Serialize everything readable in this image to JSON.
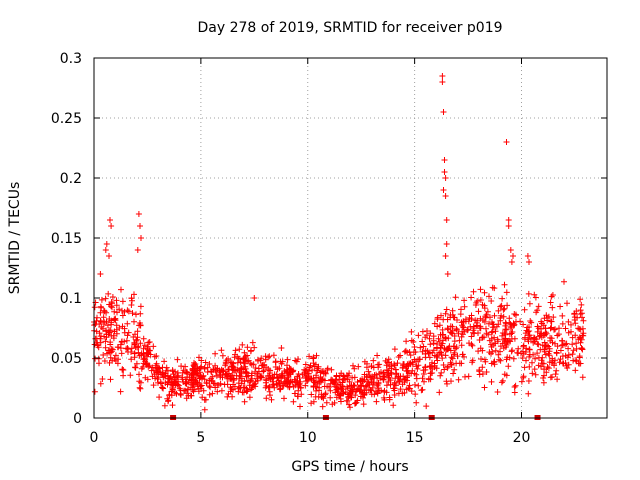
{
  "chart_data": {
    "type": "scatter",
    "title": "Day 278 of 2019, SRMTID for receiver p019",
    "xlabel": "GPS time / hours",
    "ylabel": "SRMTID / TECUs",
    "xlim": [
      0,
      24
    ],
    "ylim": [
      0,
      0.3
    ],
    "xticks": [
      "0",
      "5",
      "10",
      "15",
      "20"
    ],
    "yticks": [
      "0",
      "0.05",
      "0.1",
      "0.15",
      "0.2",
      "0.25",
      "0.3"
    ],
    "grid": true,
    "legend": "none",
    "series": [
      {
        "name": "SRMTID",
        "marker": "plus",
        "color": "#ff0000",
        "profile_hours": [
          0.0,
          0.5,
          1.0,
          1.5,
          2.0,
          2.5,
          3.0,
          3.5,
          4.0,
          5.0,
          6.0,
          7.0,
          8.0,
          9.0,
          10.0,
          11.0,
          12.0,
          13.0,
          14.0,
          15.0,
          15.5,
          16.0,
          16.5,
          17.0,
          18.0,
          19.0,
          20.0,
          21.0,
          22.0,
          23.0
        ],
        "profile_mean": [
          0.065,
          0.075,
          0.072,
          0.068,
          0.06,
          0.045,
          0.035,
          0.03,
          0.03,
          0.032,
          0.035,
          0.038,
          0.037,
          0.033,
          0.035,
          0.028,
          0.025,
          0.03,
          0.035,
          0.045,
          0.05,
          0.055,
          0.06,
          0.065,
          0.07,
          0.07,
          0.065,
          0.06,
          0.065,
          0.07
        ],
        "spikes": [
          {
            "x": 0.3,
            "y": 0.12
          },
          {
            "x": 0.55,
            "y": 0.14
          },
          {
            "x": 0.6,
            "y": 0.145
          },
          {
            "x": 0.75,
            "y": 0.165
          },
          {
            "x": 0.8,
            "y": 0.16
          },
          {
            "x": 0.7,
            "y": 0.135
          },
          {
            "x": 2.1,
            "y": 0.17
          },
          {
            "x": 2.15,
            "y": 0.16
          },
          {
            "x": 2.2,
            "y": 0.15
          },
          {
            "x": 2.05,
            "y": 0.14
          },
          {
            "x": 7.5,
            "y": 0.1
          },
          {
            "x": 16.3,
            "y": 0.285
          },
          {
            "x": 16.3,
            "y": 0.28
          },
          {
            "x": 16.35,
            "y": 0.255
          },
          {
            "x": 16.4,
            "y": 0.215
          },
          {
            "x": 16.4,
            "y": 0.205
          },
          {
            "x": 16.45,
            "y": 0.2
          },
          {
            "x": 16.35,
            "y": 0.19
          },
          {
            "x": 16.45,
            "y": 0.185
          },
          {
            "x": 16.5,
            "y": 0.165
          },
          {
            "x": 16.5,
            "y": 0.145
          },
          {
            "x": 16.45,
            "y": 0.135
          },
          {
            "x": 16.55,
            "y": 0.12
          },
          {
            "x": 19.3,
            "y": 0.23
          },
          {
            "x": 19.4,
            "y": 0.165
          },
          {
            "x": 19.4,
            "y": 0.16
          },
          {
            "x": 19.5,
            "y": 0.14
          },
          {
            "x": 19.6,
            "y": 0.135
          },
          {
            "x": 19.55,
            "y": 0.13
          },
          {
            "x": 20.3,
            "y": 0.135
          },
          {
            "x": 20.35,
            "y": 0.13
          }
        ]
      }
    ],
    "gap_markers": {
      "color": "#cc0000",
      "x": [
        3.7,
        10.85,
        15.8,
        20.75
      ]
    }
  }
}
